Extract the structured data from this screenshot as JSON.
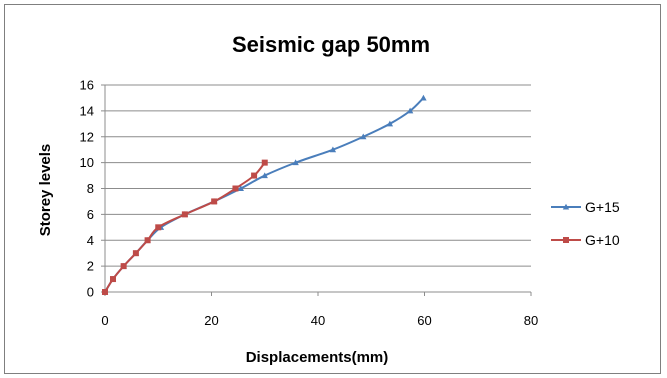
{
  "chart_data": {
    "type": "line",
    "title": "Seismic gap 50mm",
    "xlabel": "Displacements(mm)",
    "ylabel": "Storey levels",
    "xlim": [
      0,
      80
    ],
    "ylim": [
      0,
      16
    ],
    "xticks": [
      "0",
      "20",
      "40",
      "60",
      "80"
    ],
    "yticks": [
      "0",
      "2",
      "4",
      "6",
      "8",
      "10",
      "12",
      "14",
      "16"
    ],
    "grid": "horizontal",
    "legend_position": "right",
    "series": [
      {
        "name": "G+15",
        "color": "#4a7ebb",
        "marker": "triangle",
        "points": [
          [
            0,
            0
          ],
          [
            1.5,
            1
          ],
          [
            3.5,
            2
          ],
          [
            5.8,
            3
          ],
          [
            8,
            4
          ],
          [
            10.5,
            5
          ],
          [
            15,
            6
          ],
          [
            20.5,
            7
          ],
          [
            25.5,
            8
          ],
          [
            30,
            9
          ],
          [
            35.8,
            10
          ],
          [
            42.8,
            11
          ],
          [
            48.5,
            12
          ],
          [
            53.5,
            13
          ],
          [
            57.3,
            14
          ],
          [
            59.8,
            15
          ]
        ]
      },
      {
        "name": "G+10",
        "color": "#be4b48",
        "marker": "square",
        "points": [
          [
            0,
            0
          ],
          [
            1.5,
            1
          ],
          [
            3.5,
            2
          ],
          [
            5.8,
            3
          ],
          [
            8,
            4
          ],
          [
            10,
            5
          ],
          [
            15,
            6
          ],
          [
            20.5,
            7
          ],
          [
            24.5,
            8
          ],
          [
            28,
            9
          ],
          [
            30,
            10
          ]
        ]
      }
    ]
  }
}
